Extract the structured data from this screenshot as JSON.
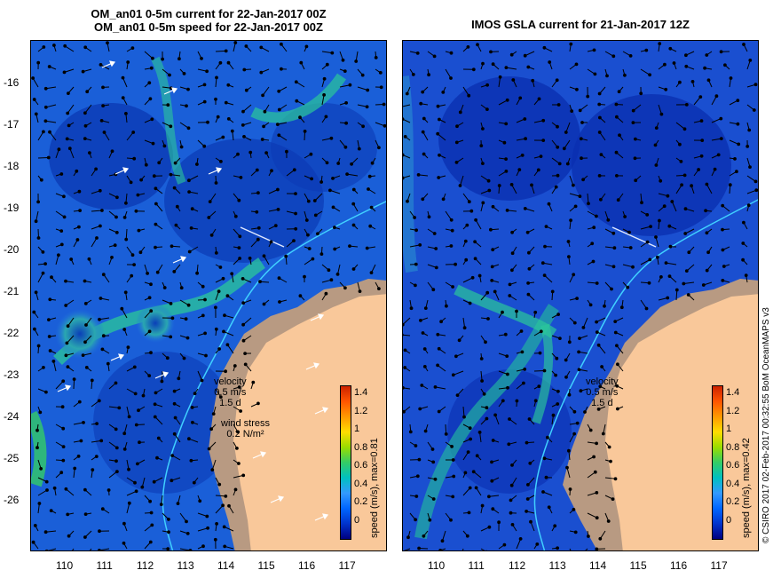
{
  "left_panel": {
    "title_line1": "OM_an01 0-5m current for 22-Jan-2017 00Z",
    "title_line2": "OM_an01 0-5m speed for 22-Jan-2017 00Z",
    "velocity_label": "velocity",
    "velocity_scale": "0.5 m/s",
    "velocity_days": "1.5 d",
    "wind_label": "wind stress",
    "wind_scale": "0.2 N/m²",
    "colorbar_title": "speed (m/s), max=0.81",
    "colorbar_ticks": [
      "1.4",
      "1.2",
      "1",
      "0.8",
      "0.6",
      "0.4",
      "0.2",
      "0"
    ]
  },
  "right_panel": {
    "title": "IMOS GSLA current for 21-Jan-2017 12Z",
    "velocity_label": "velocity",
    "velocity_scale": "0.5 m/s",
    "velocity_days": "1.5 d",
    "colorbar_title": "speed (m/s), max=0.42",
    "colorbar_ticks": [
      "1.4",
      "1.2",
      "1",
      "0.8",
      "0.6",
      "0.4",
      "0.2",
      "0"
    ]
  },
  "axes": {
    "lat_labels": [
      "-16",
      "-17",
      "-18",
      "-19",
      "-20",
      "-21",
      "-22",
      "-23",
      "-24",
      "-25",
      "-26"
    ],
    "lon_labels": [
      "110",
      "111",
      "112",
      "113",
      "114",
      "115",
      "116",
      "117"
    ]
  },
  "credit": "© CSIRO 2017   02-Feb-2017 00:32:55 BoM OceanMAPS v3",
  "colors": {
    "ocean_low": "#0033cc",
    "ocean_mid": "#1f6fe0",
    "ocean_fast": "#22c0a0",
    "land": "#f9c89a",
    "shelf_land": "#b89a82",
    "isobath": "#40d0ff"
  }
}
